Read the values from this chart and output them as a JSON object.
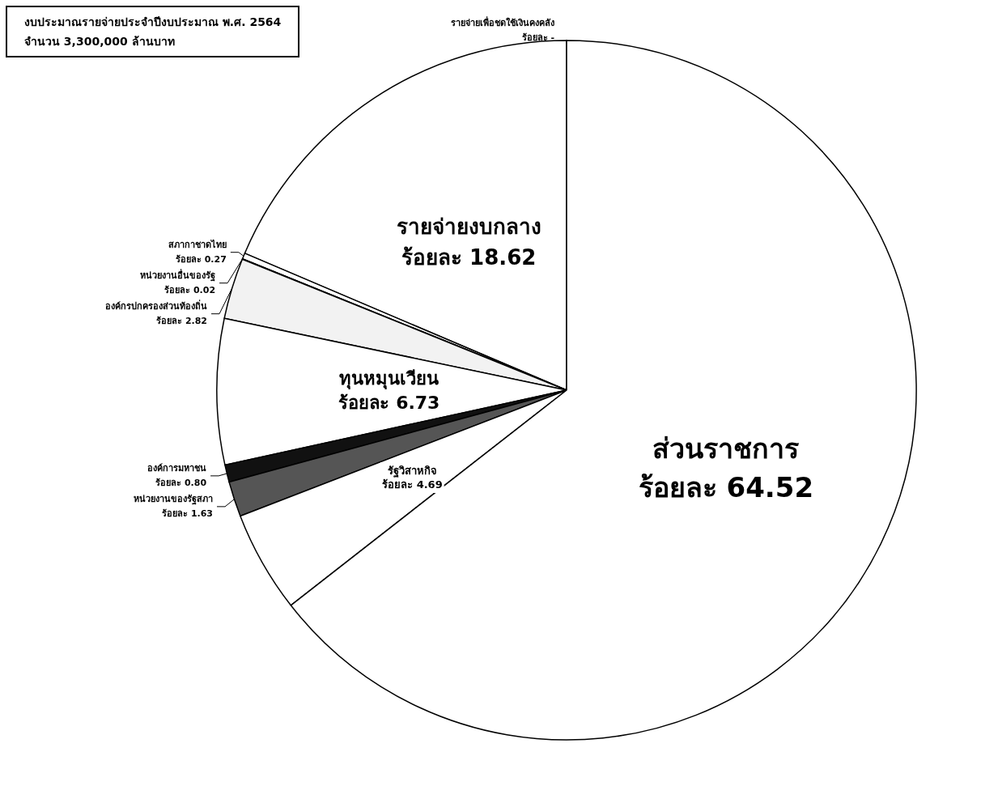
{
  "chart_data": {
    "type": "pie",
    "title": "งบประมาณรายจ่ายประจำปีงบประมาณ พ.ศ. 2564",
    "subtitle": "จำนวน 3,300,000 ล้านบาท",
    "categories": [
      "รายจ่ายเพื่อชดใช้เงินคงคลัง",
      "รายจ่ายงบกลาง",
      "สภากาชาดไทย",
      "หน่วยงานอื่นของรัฐ",
      "องค์กรปกครองส่วนท้องถิ่น",
      "ทุนหมุนเวียน",
      "องค์การมหาชน",
      "หน่วยงานของรัฐสภา",
      "รัฐวิสาหกิจ",
      "ส่วนราชการ"
    ],
    "values": [
      0,
      18.62,
      0.27,
      0.02,
      2.82,
      6.73,
      0.8,
      1.63,
      4.69,
      64.52
    ],
    "value_labels": [
      "ร้อยละ -",
      "ร้อยละ 18.62",
      "ร้อยละ 0.27",
      "ร้อยละ 0.02",
      "ร้อยละ 2.82",
      "ร้อยละ 6.73",
      "ร้อยละ 0.80",
      "ร้อยละ 1.63",
      "ร้อยละ 4.69",
      "ร้อยละ 64.52"
    ],
    "colors": [
      "#ffffff",
      "#ffffff",
      "#ffffff",
      "#ffffff",
      "#f2f2f2",
      "#ffffff",
      "#111111",
      "#555555",
      "#ffffff",
      "#ffffff"
    ],
    "legend": false
  }
}
